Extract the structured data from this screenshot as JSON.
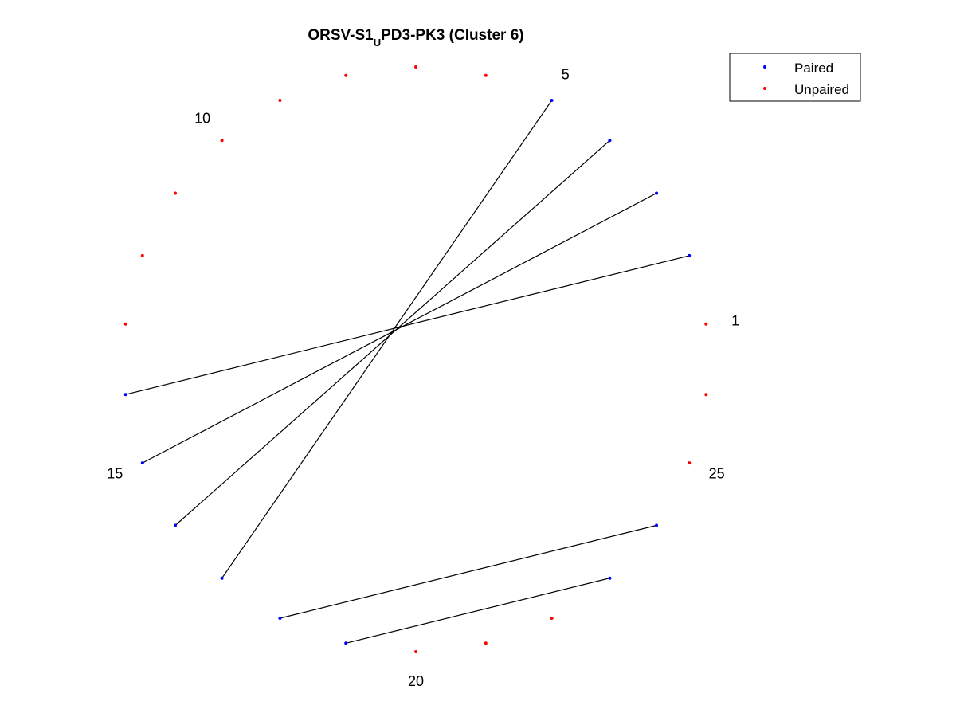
{
  "chart_data": {
    "type": "scatter",
    "title": {
      "prefix": "ORSV-S1",
      "subscript": "U",
      "suffix": "PD3-PK3 (Cluster 6)"
    },
    "legend": {
      "placement": "top-right",
      "entries": [
        {
          "label": "Paired",
          "color": "#0000ff"
        },
        {
          "label": "Unpaired",
          "color": "#ff0000"
        }
      ]
    },
    "sequence_length": 26,
    "start_angle_deg": 0,
    "direction": "counterclockwise",
    "position_labels": [
      1,
      5,
      10,
      15,
      20,
      25
    ],
    "pairs": [
      [
        2,
        14
      ],
      [
        3,
        15
      ],
      [
        4,
        16
      ],
      [
        5,
        17
      ],
      [
        18,
        24
      ],
      [
        19,
        23
      ]
    ],
    "unpaired": [
      1,
      6,
      7,
      8,
      9,
      10,
      11,
      12,
      13,
      20,
      21,
      22,
      25,
      26
    ],
    "colors": {
      "paired": "#0000ff",
      "unpaired": "#ff0000",
      "pair_line": "#000000"
    }
  }
}
